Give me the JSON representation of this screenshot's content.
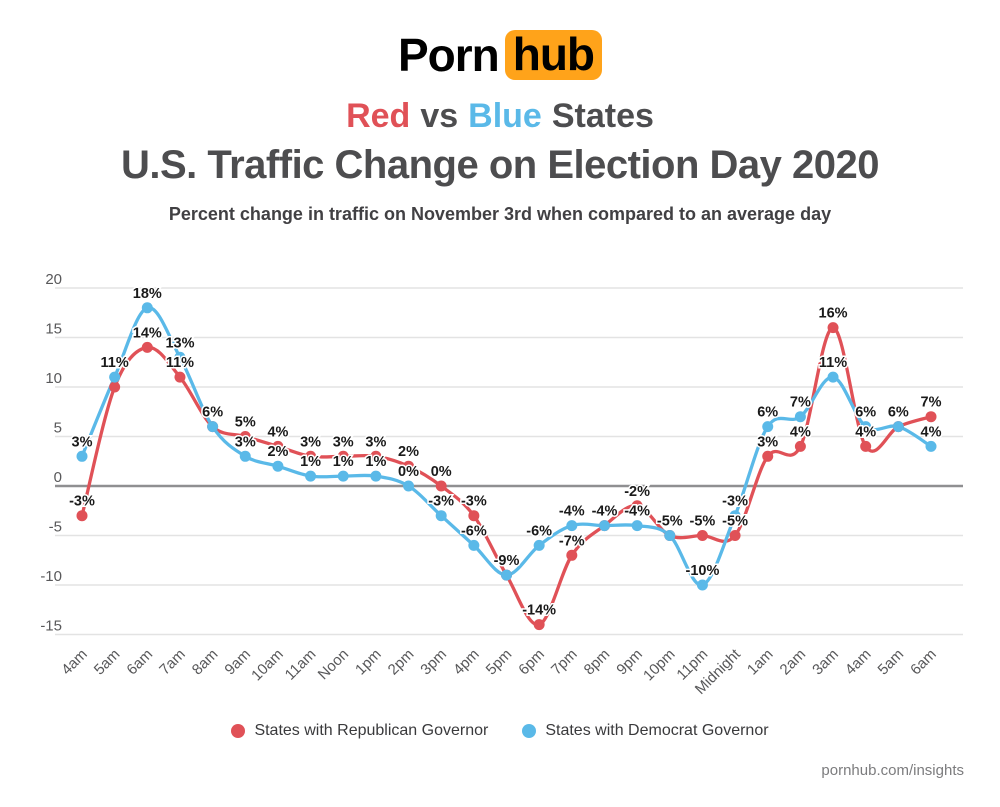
{
  "logo": {
    "part1": "Porn",
    "part2": "hub"
  },
  "title": {
    "line1_red": "Red",
    "line1_vs": "vs",
    "line1_blue": "Blue",
    "line1_rest": "States",
    "line2": "U.S. Traffic Change on Election Day 2020",
    "subtitle": "Percent change in traffic on November 3rd when compared to an average day"
  },
  "colors": {
    "republican_red": "#e05157",
    "democrat_blue": "#5ab9e8",
    "logo_orange": "#ffa31a",
    "title_gray": "#4d4d4f",
    "gridline": "#e3e3e3",
    "zero_line": "#8f8f91",
    "axis_label": "#58585a",
    "data_label": "#1a1a1a"
  },
  "chart_data": {
    "type": "line",
    "title": "Red vs Blue States — U.S. Traffic Change on Election Day 2020",
    "xlabel": "",
    "ylabel": "",
    "grid": "horizontal",
    "legend_position": "bottom",
    "x_tick_rotation": -45,
    "categories": [
      "4am",
      "5am",
      "6am",
      "7am",
      "8am",
      "9am",
      "10am",
      "11am",
      "Noon",
      "1pm",
      "2pm",
      "3pm",
      "4pm",
      "5pm",
      "6pm",
      "7pm",
      "8pm",
      "9pm",
      "10pm",
      "11pm",
      "Midnight",
      "1am",
      "2am",
      "3am",
      "4am",
      "5am",
      "6am"
    ],
    "y_ticks": [
      20,
      15,
      10,
      5,
      0,
      -5,
      -10,
      -15
    ],
    "ylim": [
      -16.5,
      21
    ],
    "series": [
      {
        "name": "States with Republican Governor",
        "color": "#e05157",
        "values": [
          -3,
          10,
          14,
          11,
          6,
          5,
          4,
          3,
          3,
          3,
          2,
          0,
          -3,
          -9,
          -14,
          -7,
          -4,
          -2,
          -5,
          -5,
          -5,
          3,
          4,
          16,
          4,
          6,
          7
        ],
        "labels": [
          "-3%",
          null,
          "14%",
          "11%",
          null,
          "5%",
          "4%",
          "3%",
          "3%",
          "3%",
          "2%",
          "0%",
          "-3%",
          null,
          "-14%",
          "-7%",
          null,
          "-2%",
          null,
          "-5%",
          "-5%",
          "3%",
          "4%",
          "16%",
          "4%",
          null,
          "7%"
        ]
      },
      {
        "name": "States with Democrat Governor",
        "color": "#5ab9e8",
        "values": [
          3,
          11,
          18,
          13,
          6,
          3,
          2,
          1,
          1,
          1,
          0,
          -3,
          -6,
          -9,
          -6,
          -4,
          -4,
          -4,
          -5,
          -10,
          -3,
          6,
          7,
          11,
          6,
          6,
          4
        ],
        "labels": [
          "3%",
          "11%",
          "18%",
          "13%",
          "6%",
          "3%",
          "2%",
          "1%",
          "1%",
          "1%",
          "0%",
          "-3%",
          "-6%",
          "-9%",
          "-6%",
          "-4%",
          "-4%",
          "-4%",
          "-5%",
          "-10%",
          "-3%",
          "6%",
          "7%",
          "11%",
          "6%",
          "6%",
          "4%"
        ]
      }
    ]
  },
  "legend": {
    "items": [
      {
        "label": "States with Republican Governor",
        "color": "#e05157"
      },
      {
        "label": "States with Democrat Governor",
        "color": "#5ab9e8"
      }
    ]
  },
  "footer": {
    "text": "pornhub.com/insights"
  }
}
